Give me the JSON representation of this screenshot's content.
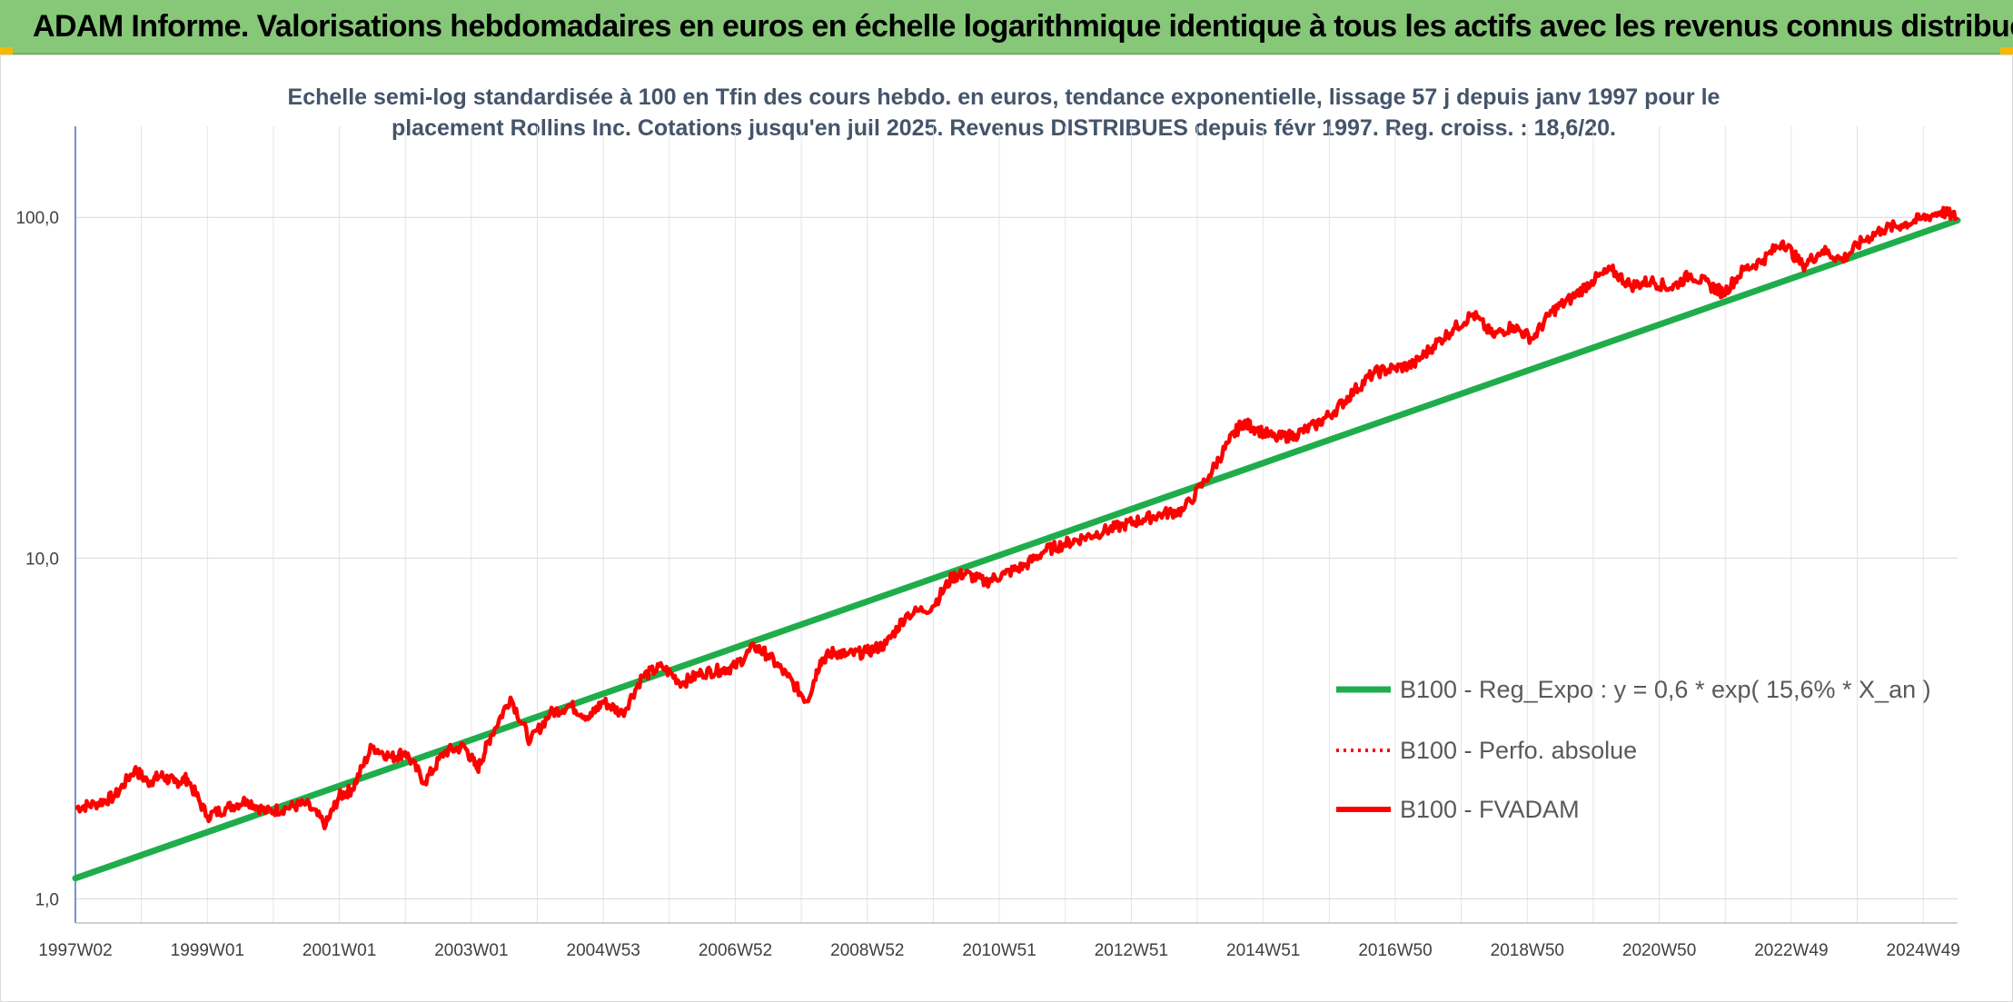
{
  "banner": {
    "title": "ADAM Informe. Valorisations hebdomadaires en euros en échelle logarithmique identique à tous les actifs avec les revenus connus distribués"
  },
  "colors": {
    "banner": "#86c878",
    "regression": "#1fad4b",
    "fvadam": "#ff0000",
    "accent": "#f5b800"
  },
  "chart_data": {
    "type": "line",
    "title": [
      "Echelle semi-log standardisée à 100 en Tfin des cours hebdo. en euros, tendance exponentielle, lissage 57 j depuis janv 1997 pour le",
      "placement Rollins Inc. Cotations jusqu'en juil 2025. Revenus DISTRIBUES depuis févr 1997. Reg. croiss. : 18,6/20."
    ],
    "y_scale": "log",
    "ylim": [
      1,
      100
    ],
    "y_ticks": [
      "1,0",
      "10,0",
      "100,0"
    ],
    "x_ticks": [
      "1997W02",
      "1999W01",
      "2001W01",
      "2003W01",
      "2004W53",
      "2006W52",
      "2008W52",
      "2010W51",
      "2012W51",
      "2014W51",
      "2016W50",
      "2018W50",
      "2020W50",
      "2022W49",
      "2024W49"
    ],
    "x_range": [
      1997.0,
      2025.55
    ],
    "grid": "vertical and horizontal",
    "legend_position": "right-center",
    "series": [
      {
        "name": "B100 - Reg_Expo : y = 0,6 * exp( 15,6% *  X_an )",
        "style": "solid",
        "x": [
          1997.0,
          2025.55
        ],
        "y": [
          1.15,
          98
        ]
      },
      {
        "name": "B100 - Perfo. absolue",
        "style": "dotted",
        "x": [],
        "y": []
      },
      {
        "name": "B100 - FVADAM",
        "style": "solid",
        "x": [
          1997.0,
          1997.3,
          1997.6,
          1997.9,
          1998.1,
          1998.3,
          1998.5,
          1998.7,
          1999.0,
          1999.3,
          1999.6,
          1999.9,
          2000.2,
          2000.5,
          2000.8,
          2001.0,
          2001.2,
          2001.5,
          2001.8,
          2002.0,
          2002.3,
          2002.6,
          2002.9,
          2003.1,
          2003.3,
          2003.6,
          2003.9,
          2004.2,
          2004.5,
          2004.8,
          2005.0,
          2005.3,
          2005.6,
          2005.9,
          2006.2,
          2006.5,
          2006.8,
          2007.0,
          2007.3,
          2007.5,
          2007.8,
          2008.1,
          2008.3,
          2008.5,
          2008.7,
          2009.0,
          2009.3,
          2009.6,
          2010.0,
          2010.3,
          2010.5,
          2010.8,
          2011.1,
          2011.4,
          2011.7,
          2012.0,
          2012.3,
          2012.6,
          2012.9,
          2013.2,
          2013.5,
          2013.8,
          2014.2,
          2014.5,
          2014.7,
          2014.9,
          2015.2,
          2015.5,
          2015.8,
          2016.1,
          2016.4,
          2016.7,
          2017.0,
          2017.3,
          2017.6,
          2017.9,
          2018.2,
          2018.5,
          2018.8,
          2019.1,
          2019.4,
          2019.7,
          2020.0,
          2020.3,
          2020.6,
          2020.9,
          2021.2,
          2021.5,
          2021.8,
          2022.0,
          2022.3,
          2022.6,
          2022.9,
          2023.2,
          2023.5,
          2023.8,
          2024.1,
          2024.4,
          2024.7,
          2025.0,
          2025.3,
          2025.55
        ],
        "y": [
          1.85,
          1.9,
          2.0,
          2.4,
          2.2,
          2.3,
          2.2,
          2.25,
          1.75,
          1.85,
          1.95,
          1.8,
          1.85,
          1.9,
          1.65,
          2.0,
          2.1,
          2.8,
          2.6,
          2.7,
          2.2,
          2.7,
          2.8,
          2.4,
          3.0,
          3.9,
          2.9,
          3.5,
          3.7,
          3.4,
          3.8,
          3.5,
          4.5,
          4.8,
          4.3,
          4.6,
          4.7,
          4.8,
          5.5,
          5.2,
          4.5,
          3.8,
          5.0,
          5.3,
          5.2,
          5.3,
          5.6,
          6.8,
          7.2,
          8.8,
          9.0,
          8.5,
          9.0,
          9.5,
          10.5,
          11.0,
          11.5,
          12.0,
          12.5,
          13.0,
          13.5,
          13.8,
          17.5,
          22.0,
          25.0,
          24.0,
          22.5,
          23.0,
          24.5,
          27.0,
          31.0,
          35.0,
          36.0,
          37.0,
          42.0,
          47.0,
          52.0,
          45.0,
          48.0,
          44.0,
          53.0,
          58.0,
          65.0,
          70.0,
          63.0,
          65.0,
          62.0,
          68.0,
          63.0,
          60.0,
          70.0,
          75.0,
          85.0,
          72.0,
          80.0,
          75.0,
          85.0,
          92.0,
          95.0,
          99.0,
          104.0,
          100.0
        ]
      }
    ]
  }
}
